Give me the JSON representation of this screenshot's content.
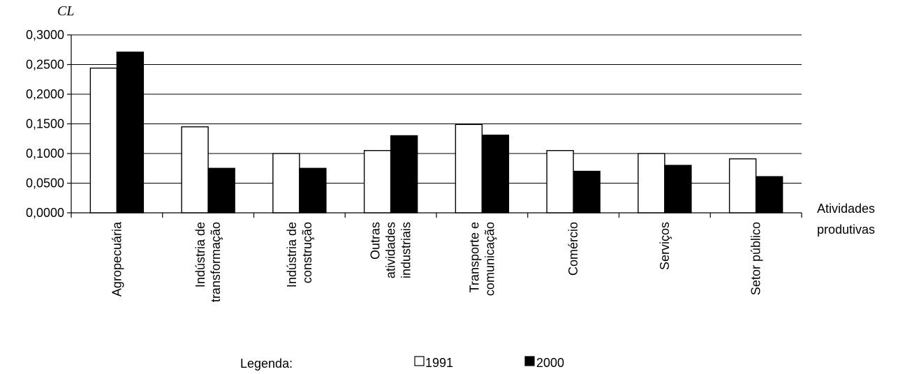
{
  "chart_data": {
    "type": "bar",
    "ylabel": "CL",
    "xlabel": [
      "Atividades",
      "produtivas"
    ],
    "ylim": [
      0,
      0.3
    ],
    "yticks": [
      "0,0000",
      "0,0500",
      "0,1000",
      "0,1500",
      "0,2000",
      "0,2500",
      "0,3000"
    ],
    "grid": true,
    "categories": [
      [
        "Agropecuária"
      ],
      [
        "Indústria de",
        "transformação"
      ],
      [
        "Indústria de",
        "construção"
      ],
      [
        "Outras",
        "atividades",
        "industriais"
      ],
      [
        "Transporte e",
        "comunicação"
      ],
      [
        "Comércio"
      ],
      [
        "Serviços"
      ],
      [
        "Setor público"
      ]
    ],
    "series": [
      {
        "name": "1991",
        "color": "#ffffff",
        "values": [
          0.244,
          0.145,
          0.1,
          0.105,
          0.149,
          0.105,
          0.1,
          0.091
        ]
      },
      {
        "name": "2000",
        "color": "#000000",
        "values": [
          0.271,
          0.075,
          0.075,
          0.13,
          0.131,
          0.07,
          0.08,
          0.061
        ]
      }
    ],
    "legend": {
      "title": "Legenda:",
      "position": "bottom-center"
    }
  }
}
